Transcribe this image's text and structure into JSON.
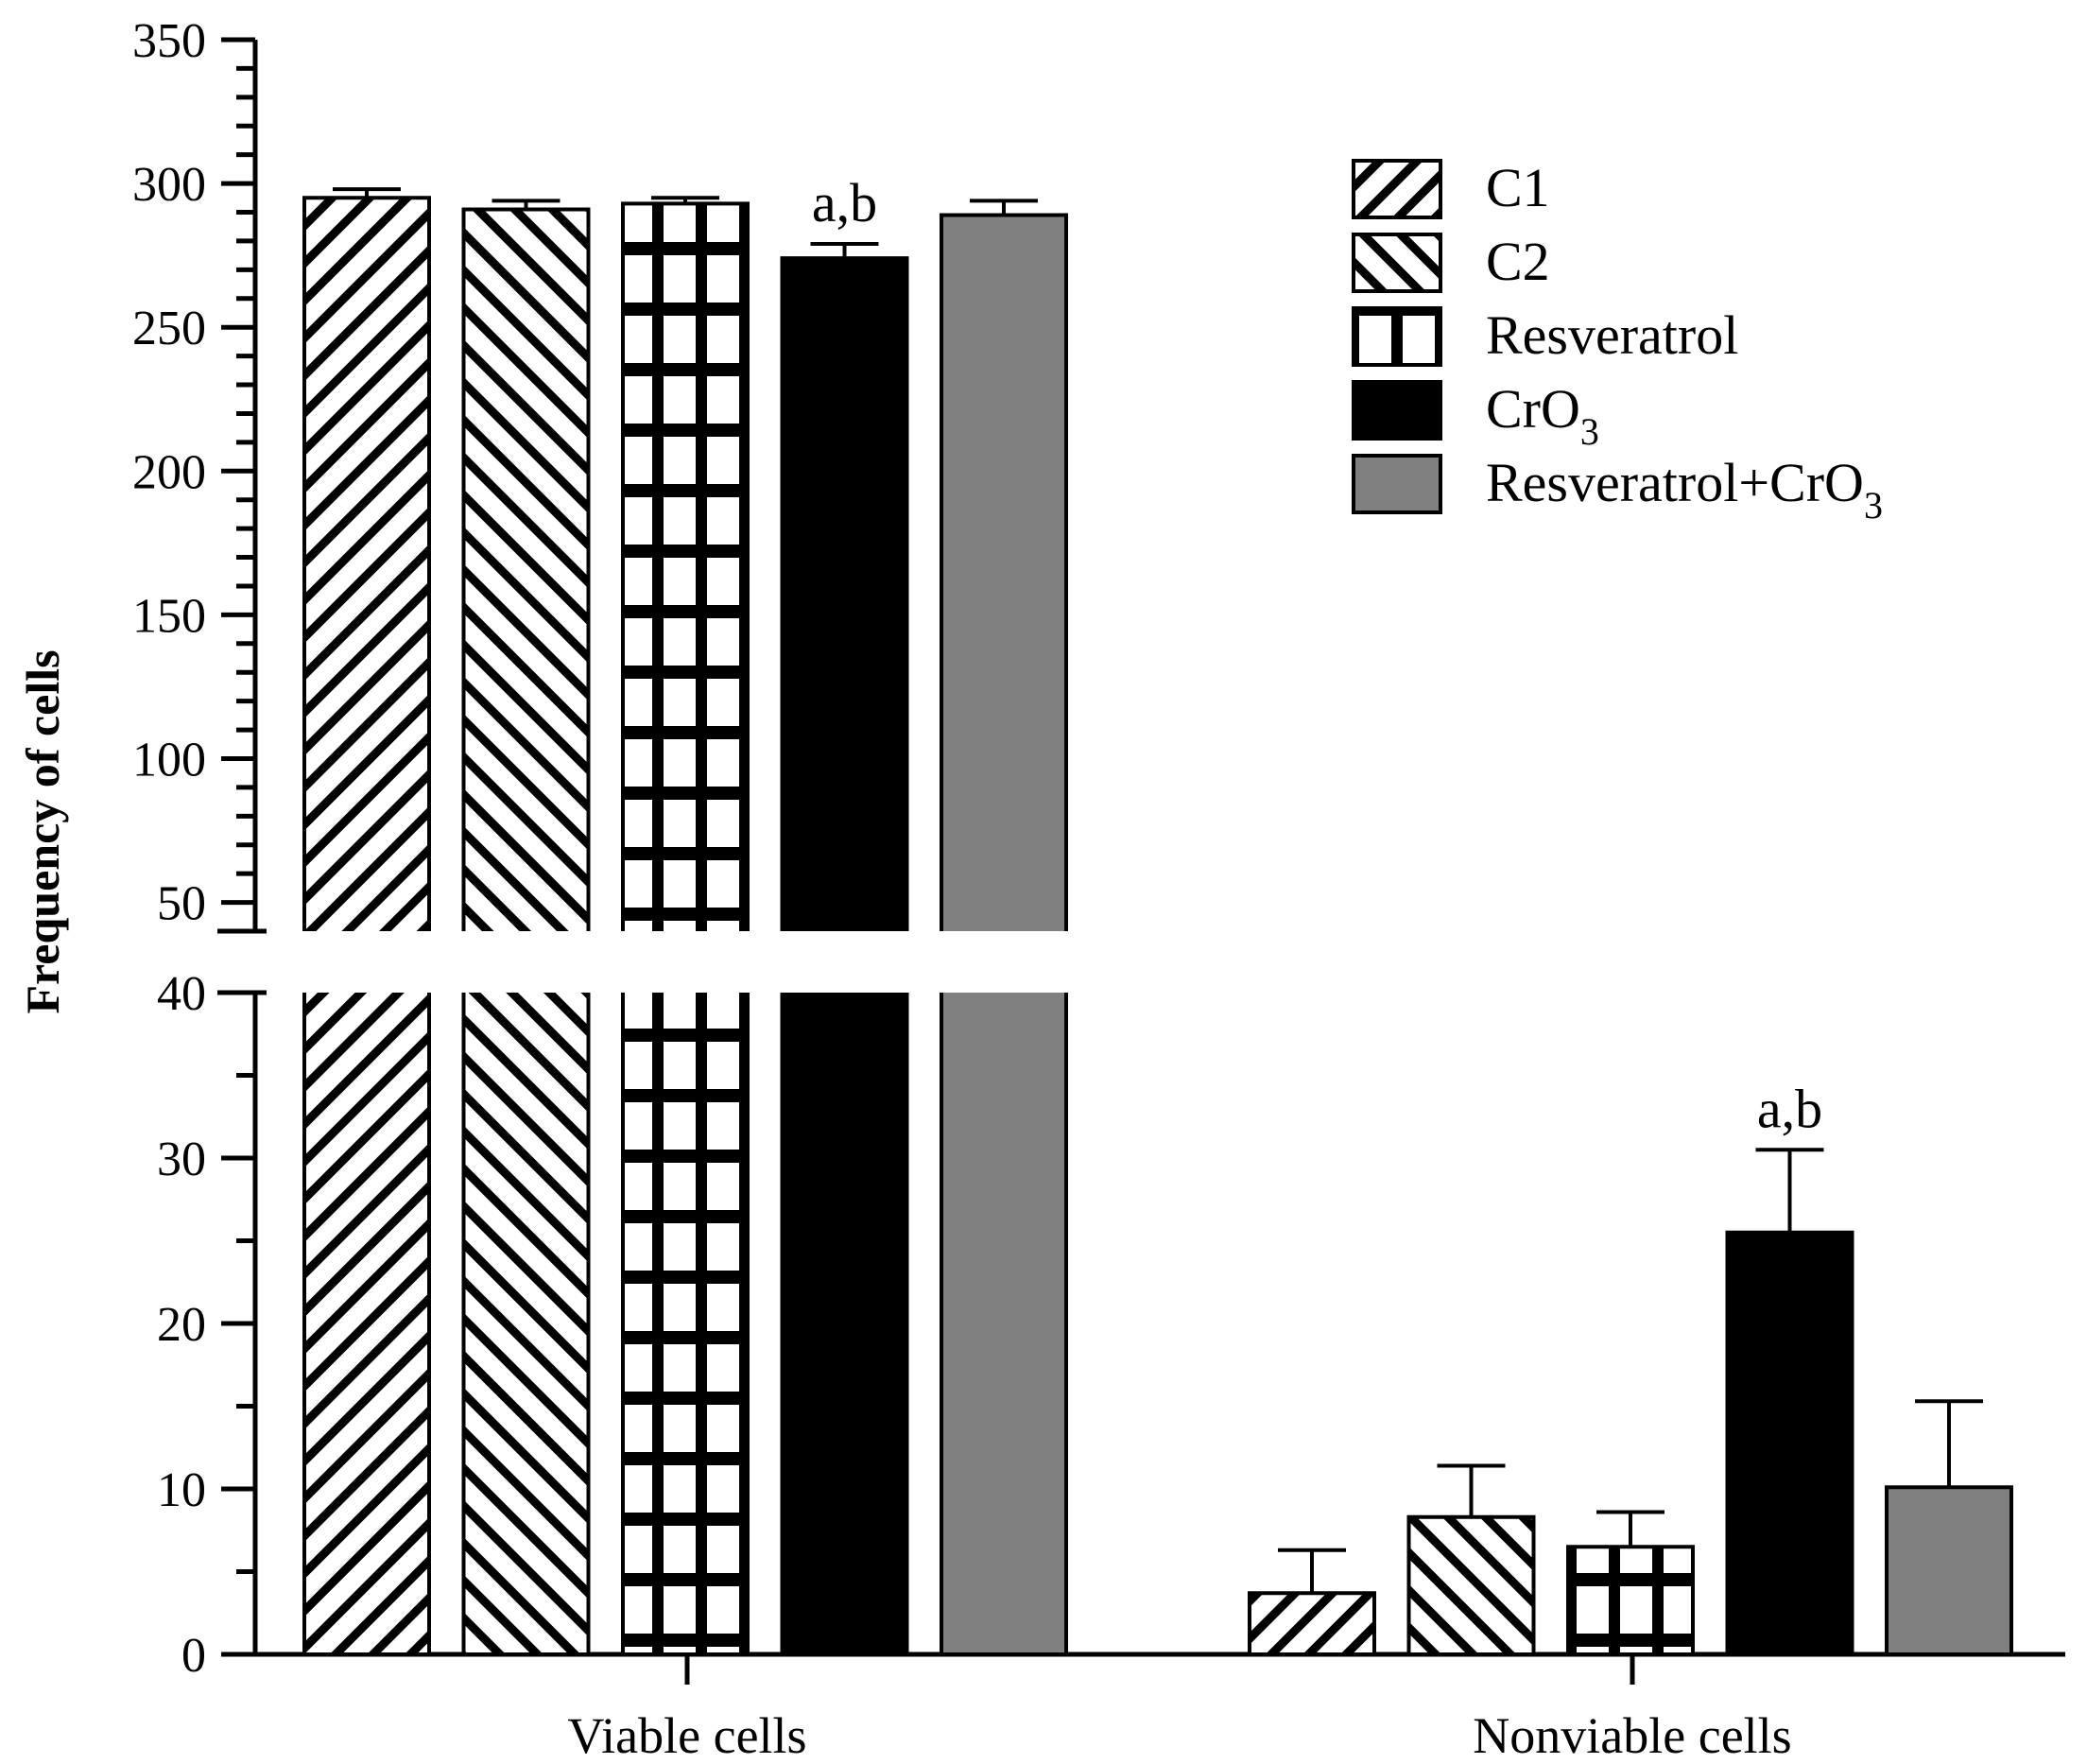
{
  "chart_data": {
    "type": "bar",
    "title": "",
    "xlabel": "",
    "ylabel": "Frequency of cells",
    "categories": [
      "Viable cells",
      "Nonviable cells"
    ],
    "y_axis": {
      "broken": true,
      "lower_segment": {
        "range": [
          0,
          40
        ],
        "ticks": [
          0,
          10,
          20,
          30,
          40
        ]
      },
      "upper_segment": {
        "range": [
          40,
          350
        ],
        "ticks": [
          50,
          100,
          150,
          200,
          250,
          300,
          350
        ]
      }
    },
    "series": [
      {
        "name": "C1",
        "pattern": "hatch-forward",
        "values": [
          295,
          3.7
        ],
        "errors": [
          3,
          2.6
        ]
      },
      {
        "name": "C2",
        "pattern": "hatch-back",
        "values": [
          291,
          8.3
        ],
        "errors": [
          3,
          3.1
        ]
      },
      {
        "name": "Resveratrol",
        "pattern": "grid",
        "values": [
          293,
          6.5
        ],
        "errors": [
          2,
          2.1
        ]
      },
      {
        "name": "CrO3",
        "pattern": "solid-black",
        "values": [
          274,
          25.5
        ],
        "errors": [
          5,
          5
        ]
      },
      {
        "name": "Resveratrol+CrO3",
        "pattern": "solid-gray",
        "values": [
          289,
          10.1
        ],
        "errors": [
          5,
          5.2
        ]
      }
    ],
    "annotations": [
      {
        "text": "a,b",
        "category": 0,
        "series": 3
      },
      {
        "text": "a,b",
        "category": 1,
        "series": 3
      }
    ],
    "legend": {
      "position": "top-right",
      "entries": [
        {
          "main": "C1",
          "sub": ""
        },
        {
          "main": "C2",
          "sub": ""
        },
        {
          "main": "Resveratrol",
          "sub": ""
        },
        {
          "main": "CrO",
          "sub": "3"
        },
        {
          "main": "Resveratrol+CrO",
          "sub": "3"
        }
      ]
    },
    "colors": {
      "solid-black": "#000000",
      "solid-gray": "#808080",
      "outline": "#000000"
    }
  }
}
